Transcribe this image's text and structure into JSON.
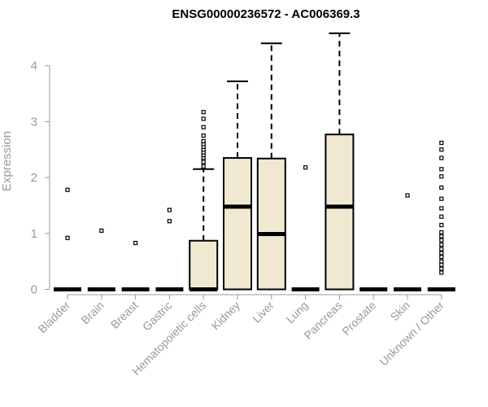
{
  "chart_data": {
    "type": "box",
    "title": "ENSG00000236572 - AC006369.3",
    "xlabel": "",
    "ylabel": "Expression",
    "ylim": [
      0,
      4.5
    ],
    "yticks": [
      0,
      1,
      2,
      3,
      4
    ],
    "box_fill": "#f0e8d0",
    "categories": [
      "Bladder",
      "Brain",
      "Breast",
      "Gastric",
      "Hematopoietic cells",
      "Kidney",
      "Liver",
      "Lung",
      "Pancreas",
      "Prostate",
      "Skin",
      "Unknown / Other"
    ],
    "boxes": [
      {
        "q1": 0,
        "median": 0,
        "q3": 0,
        "whisker_low": 0,
        "whisker_high": 0,
        "outliers": [
          0.92,
          1.78
        ]
      },
      {
        "q1": 0,
        "median": 0,
        "q3": 0,
        "whisker_low": 0,
        "whisker_high": 0,
        "outliers": [
          1.05
        ]
      },
      {
        "q1": 0,
        "median": 0,
        "q3": 0,
        "whisker_low": 0,
        "whisker_high": 0,
        "outliers": [
          0.83
        ]
      },
      {
        "q1": 0,
        "median": 0,
        "q3": 0,
        "whisker_low": 0,
        "whisker_high": 0,
        "outliers": [
          1.22,
          1.42
        ]
      },
      {
        "q1": 0,
        "median": 0,
        "q3": 0.87,
        "whisker_low": 0,
        "whisker_high": 2.15,
        "outliers": [
          2.2,
          2.28,
          2.35,
          2.4,
          2.45,
          2.5,
          2.55,
          2.6,
          2.65,
          2.75,
          2.9,
          3.05,
          3.17
        ]
      },
      {
        "q1": 0,
        "median": 1.48,
        "q3": 2.35,
        "whisker_low": 0,
        "whisker_high": 3.72,
        "outliers": []
      },
      {
        "q1": 0,
        "median": 0.99,
        "q3": 2.34,
        "whisker_low": 0,
        "whisker_high": 4.4,
        "outliers": []
      },
      {
        "q1": 0,
        "median": 0,
        "q3": 0,
        "whisker_low": 0,
        "whisker_high": 0,
        "outliers": [
          2.18
        ]
      },
      {
        "q1": 0,
        "median": 1.48,
        "q3": 2.77,
        "whisker_low": 0,
        "whisker_high": 4.58,
        "outliers": []
      },
      {
        "q1": 0,
        "median": 0,
        "q3": 0,
        "whisker_low": 0,
        "whisker_high": 0,
        "outliers": []
      },
      {
        "q1": 0,
        "median": 0,
        "q3": 0,
        "whisker_low": 0,
        "whisker_high": 0,
        "outliers": [
          1.68
        ]
      },
      {
        "q1": 0,
        "median": 0,
        "q3": 0,
        "whisker_low": 0,
        "whisker_high": 0,
        "outliers": [
          0.3,
          0.37,
          0.44,
          0.5,
          0.58,
          0.65,
          0.72,
          0.8,
          0.88,
          0.95,
          1.02,
          1.15,
          1.3,
          1.45,
          1.62,
          1.82,
          2.02,
          2.15,
          2.35,
          2.5,
          2.62
        ]
      }
    ]
  }
}
